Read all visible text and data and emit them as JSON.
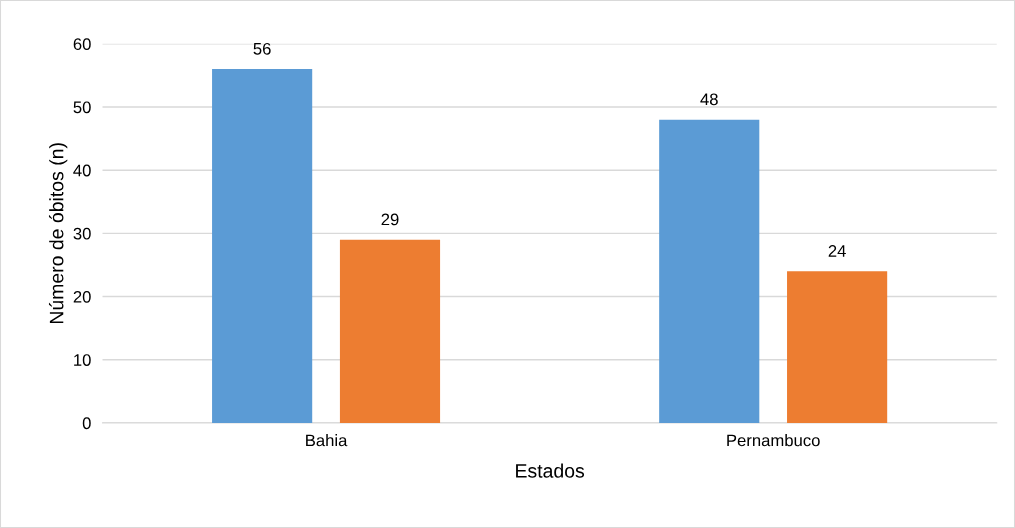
{
  "chart_data": {
    "type": "bar",
    "xlabel": "Estados",
    "ylabel": "Número de óbitos (n)",
    "categories": [
      "Bahia",
      "Pernambuco"
    ],
    "series": [
      {
        "color": "#5b9bd5",
        "values": [
          56,
          48
        ]
      },
      {
        "color": "#ed7d31",
        "values": [
          29,
          24
        ]
      }
    ],
    "ylim": [
      0,
      60
    ],
    "yticks": [
      0,
      10,
      20,
      30,
      40,
      50,
      60
    ],
    "grid": "y",
    "data_labels": true,
    "legend": false
  }
}
